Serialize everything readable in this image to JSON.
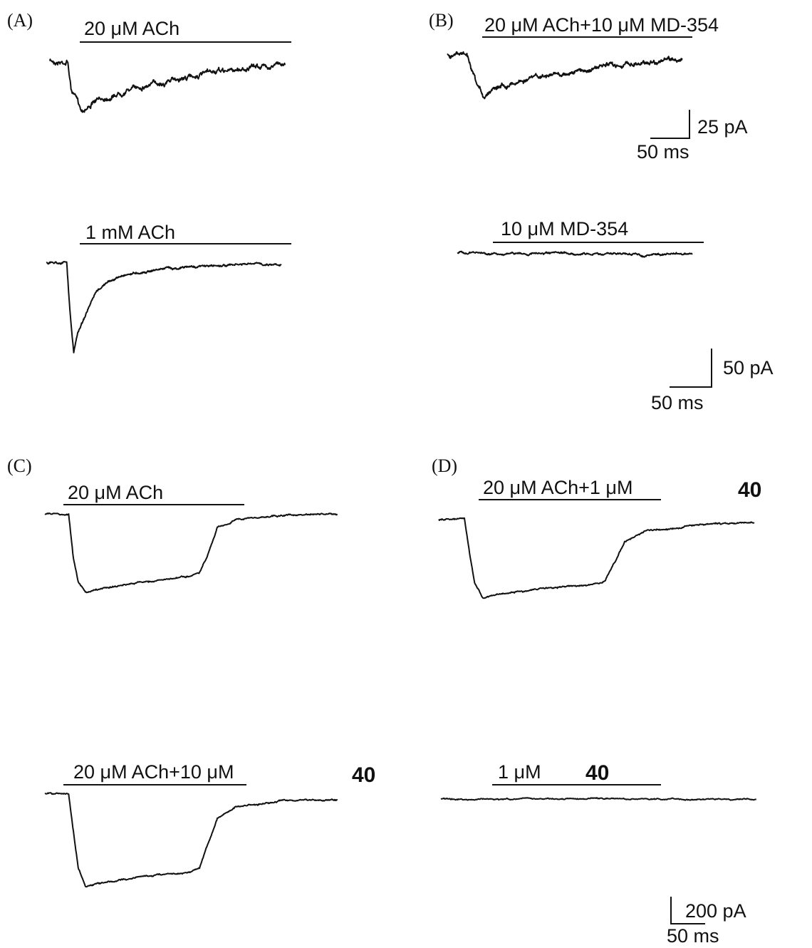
{
  "figure": {
    "panels": [
      {
        "id": "A",
        "label": "(A)"
      },
      {
        "id": "B",
        "label": "(B)"
      },
      {
        "id": "C",
        "label": "(C)"
      },
      {
        "id": "D",
        "label": "(D)"
      }
    ],
    "traces": [
      {
        "panel": "A",
        "condition": "20 μM ACh",
        "compound": ""
      },
      {
        "panel": "A",
        "condition": "1 mM ACh",
        "compound": ""
      },
      {
        "panel": "B",
        "condition": "20 μM ACh+10 μM MD-354",
        "compound": ""
      },
      {
        "panel": "B",
        "condition": "10 μM MD-354",
        "compound": ""
      },
      {
        "panel": "C",
        "condition": "20 μM ACh",
        "compound": ""
      },
      {
        "panel": "C",
        "condition": "20 μM ACh+10 μM",
        "compound": "40"
      },
      {
        "panel": "D",
        "condition": "20 μM ACh+1 μM",
        "compound": "40"
      },
      {
        "panel": "D",
        "condition": "1 μM",
        "compound": "40"
      }
    ],
    "scale_bars": [
      {
        "current": "25 pA",
        "time": "50 ms"
      },
      {
        "current": "50 pA",
        "time": "50 ms"
      },
      {
        "current": "200 pA",
        "time": "50 ms"
      }
    ]
  },
  "chart_data": {
    "type": "line",
    "x_unit": "ms",
    "y_unit": "pA",
    "series": [
      {
        "panel": "A",
        "condition": "20 μM ACh",
        "scale": "25 pA / 50 ms",
        "x": [
          0,
          23,
          27,
          38,
          40,
          56,
          75,
          100,
          150,
          200,
          250,
          300
        ],
        "y": [
          0,
          0,
          -24,
          -39,
          -43,
          -36,
          -31,
          -24,
          -17,
          -11,
          -6,
          -2
        ]
      },
      {
        "panel": "A",
        "condition": "1 mM ACh",
        "scale": "50 pA / 50 ms",
        "x": [
          0,
          26,
          30,
          35,
          40,
          50,
          63,
          75,
          100,
          150,
          200,
          250,
          300
        ],
        "y": [
          0,
          0,
          -62,
          -118,
          -92,
          -68,
          -41,
          -28,
          -16,
          -8,
          -5,
          -3,
          -2
        ]
      },
      {
        "panel": "B",
        "condition": "20 μM ACh+10 μM MD-354",
        "scale": "25 pA / 50 ms",
        "x": [
          0,
          25,
          30,
          38,
          47,
          60,
          75,
          100,
          150,
          200,
          250,
          300
        ],
        "y": [
          0,
          0,
          -14,
          -30,
          -38,
          -27,
          -26,
          -22,
          -17,
          -11,
          -7,
          -4
        ]
      },
      {
        "panel": "B",
        "condition": "10 μM MD-354",
        "scale": "50 pA / 50 ms",
        "x": [
          0,
          25,
          50,
          100,
          150,
          200,
          225,
          240,
          250,
          275,
          300
        ],
        "y": [
          0,
          0,
          -1,
          -1,
          -1,
          -1,
          -1,
          -4,
          -2,
          -1,
          -1
        ]
      },
      {
        "panel": "C",
        "condition": "20 μM ACh+10 μM 40",
        "scale": "200 pA / 50 ms",
        "x": [
          0,
          20,
          24,
          28,
          34,
          45,
          60,
          80,
          100,
          120,
          130,
          136,
          145,
          160,
          200,
          246
        ],
        "y": [
          0,
          0,
          -280,
          -540,
          -678,
          -664,
          -640,
          -610,
          -590,
          -576,
          -545,
          -390,
          -180,
          -95,
          -50,
          -42
        ]
      },
      {
        "panel": "C",
        "condition": "20 μM ACh",
        "scale": "200 pA / 50 ms",
        "x": [
          0,
          20,
          24,
          28,
          34,
          45,
          60,
          80,
          100,
          120,
          130,
          136,
          145,
          160,
          200,
          246
        ],
        "y": [
          0,
          0,
          -330,
          -500,
          -578,
          -560,
          -535,
          -505,
          -485,
          -465,
          -440,
          -330,
          -110,
          -42,
          -10,
          -6
        ]
      },
      {
        "panel": "D",
        "condition": "20 μM ACh+1 μM 40",
        "scale": "200 pA / 50 ms",
        "x": [
          0,
          20,
          24,
          28,
          34,
          45,
          60,
          80,
          100,
          120,
          130,
          136,
          145,
          160,
          200,
          246
        ],
        "y": [
          0,
          0,
          -250,
          -470,
          -572,
          -555,
          -535,
          -510,
          -495,
          -480,
          -455,
          -335,
          -170,
          -86,
          -36,
          -24
        ]
      },
      {
        "panel": "D",
        "condition": "1 μM 40",
        "scale": "200 pA / 50 ms",
        "x": [
          0,
          40,
          60,
          100,
          150,
          180,
          200,
          246
        ],
        "y": [
          0,
          0,
          -1,
          1,
          1,
          0,
          -2,
          -1
        ]
      }
    ]
  }
}
